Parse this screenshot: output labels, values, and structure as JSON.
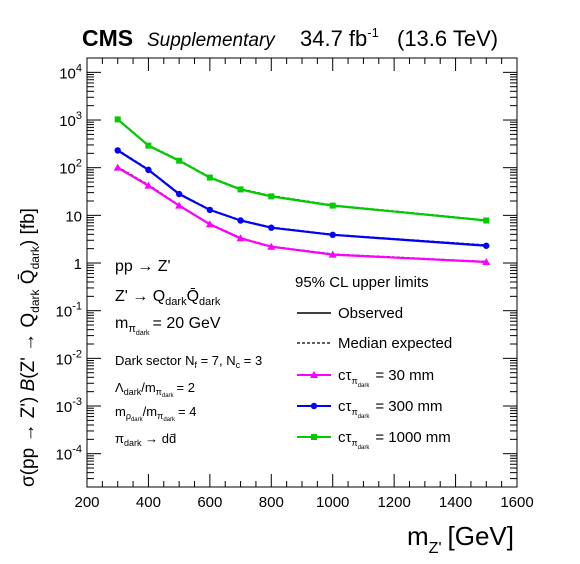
{
  "header": {
    "experiment": "CMS",
    "status": "Supplementary",
    "lumi_prefix": "34.7 fb",
    "lumi_exponent": "-1",
    "energy": "(13.6 TeV)"
  },
  "chart_data": {
    "type": "line",
    "x_axis": {
      "label_main": "m",
      "label_sub": "Z'",
      "label_unit": "[GeV]",
      "range": [
        200,
        1600
      ],
      "ticks": [
        "200",
        "400",
        "600",
        "800",
        "1000",
        "1200",
        "1400",
        "1600"
      ],
      "scale": "linear"
    },
    "y_axis": {
      "label": "σ(pp → Z') B(Z' → Q_dark Q̄_dark) [fb]",
      "range": [
        2e-05,
        20000
      ],
      "scale": "log",
      "ticks": [
        "10^-4",
        "10^-3",
        "10^-2",
        "10^-1",
        "1",
        "10",
        "10^2",
        "10^3",
        "10^4"
      ]
    },
    "x": [
      300,
      400,
      500,
      600,
      700,
      800,
      1000,
      1500
    ],
    "series": [
      {
        "name": "cτ = 30 mm",
        "color": "#ff00ff",
        "marker": "triangle",
        "observed": [
          100,
          42,
          16,
          6.5,
          3.3,
          2.2,
          1.5,
          1.05
        ],
        "expected": [
          105,
          44,
          16.5,
          6.7,
          3.4,
          2.25,
          1.55,
          1.08
        ]
      },
      {
        "name": "cτ = 300 mm",
        "color": "#0000ff",
        "marker": "circle",
        "observed": [
          230,
          90,
          28,
          13,
          7.8,
          5.5,
          3.9,
          2.3
        ],
        "expected": [
          240,
          93,
          29,
          13.4,
          8.0,
          5.7,
          4.0,
          2.4
        ]
      },
      {
        "name": "cτ = 1000 mm",
        "color": "#00cc00",
        "marker": "square",
        "observed": [
          1030,
          290,
          140,
          62,
          35,
          25,
          16,
          7.8
        ],
        "expected": [
          1060,
          300,
          145,
          64,
          36,
          26,
          16.5,
          8.0
        ]
      }
    ],
    "annotations": {
      "process": "pp → Z'",
      "decay": "Z' → Q_dark Q̄_dark",
      "mass": "m_π_dark = 20 GeV",
      "sector": "Dark sector N_f = 7,  N_c = 3",
      "lambda_ratio": "Λ_dark/m_π_dark = 2",
      "rho_ratio": "m_ρ_dark/m_π_dark = 4",
      "pion_decay": "π_dark → dd̄"
    },
    "legend": {
      "title": "95% CL upper limits",
      "observed": "Observed",
      "expected": "Median expected",
      "placement": "lower-right"
    }
  }
}
